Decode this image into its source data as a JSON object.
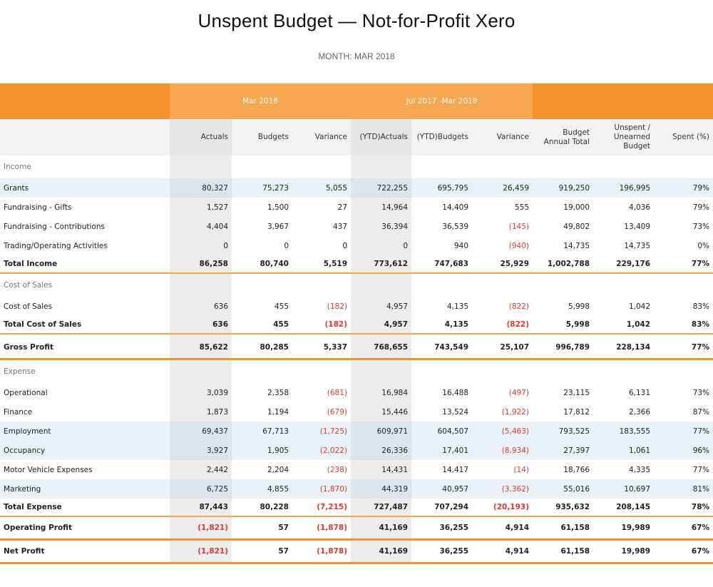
{
  "title": "Unspent Budget — Not-for-Profit Xero",
  "subtitle": "MONTH: MAR 2018",
  "colors": {
    "orange": "#f5922b",
    "light_orange": "#f7a74f",
    "negative": "#e03a2f",
    "row_highlight": "#e9f1f8"
  },
  "groups": {
    "month": "Mar 2018",
    "ytd": "Jul 2017 -Mar 2018"
  },
  "columns": [
    "Actuals",
    "Budgets",
    "Variance",
    "(YTD)Actuals",
    "(YTD)Budgets",
    "Variance",
    "Budget Annual Total",
    "Unspent / Unearned Budget",
    "Spent (%)"
  ],
  "sections": [
    {
      "title": "Income",
      "rows": [
        {
          "label": "Grants",
          "highlight": true,
          "values": [
            "80,327",
            "75,273",
            "5,055",
            "722,255",
            "695,795",
            "26,459",
            "919,250",
            "196,995",
            "79%"
          ]
        },
        {
          "label": "Fundraising - Gifts",
          "highlight": false,
          "values": [
            "1,527",
            "1,500",
            "27",
            "14,964",
            "14,409",
            "555",
            "19,000",
            "4,036",
            "79%"
          ]
        },
        {
          "label": "Fundraising - Contributions",
          "highlight": false,
          "values": [
            "4,404",
            "3,967",
            "437",
            "36,394",
            "36,539",
            "(145)",
            "49,802",
            "13,409",
            "73%"
          ]
        },
        {
          "label": "Trading/Operating Activities",
          "highlight": false,
          "values": [
            "0",
            "0",
            "0",
            "0",
            "940",
            "(940)",
            "14,735",
            "14,735",
            "0%"
          ]
        }
      ],
      "total": {
        "label": "Total Income",
        "values": [
          "86,258",
          "80,740",
          "5,519",
          "773,612",
          "747,683",
          "25,929",
          "1,002,788",
          "229,176",
          "77%"
        ]
      }
    },
    {
      "title": "Cost of Sales",
      "rows": [
        {
          "label": "Cost of Sales",
          "highlight": false,
          "values": [
            "636",
            "455",
            "(182)",
            "4,957",
            "4,135",
            "(822)",
            "5,998",
            "1,042",
            "83%"
          ]
        }
      ],
      "total": {
        "label": "Total Cost of Sales",
        "values": [
          "636",
          "455",
          "(182)",
          "4,957",
          "4,135",
          "(822)",
          "5,998",
          "1,042",
          "83%"
        ]
      }
    }
  ],
  "gross_profit": {
    "label": "Gross Profit",
    "values": [
      "85,622",
      "80,285",
      "5,337",
      "768,655",
      "743,549",
      "25,107",
      "996,789",
      "228,134",
      "77%"
    ]
  },
  "expense": {
    "title": "Expense",
    "rows": [
      {
        "label": "Operational",
        "highlight": false,
        "values": [
          "3,039",
          "2,358",
          "(681)",
          "16,984",
          "16,488",
          "(497)",
          "23,115",
          "6,131",
          "73%"
        ]
      },
      {
        "label": "Finance",
        "highlight": false,
        "values": [
          "1,873",
          "1,194",
          "(679)",
          "15,446",
          "13,524",
          "(1,922)",
          "17,812",
          "2,366",
          "87%"
        ]
      },
      {
        "label": "Employment",
        "highlight": true,
        "values": [
          "69,437",
          "67,713",
          "(1,725)",
          "609,971",
          "604,507",
          "(5,463)",
          "793,525",
          "183,555",
          "77%"
        ]
      },
      {
        "label": "Occupancy",
        "highlight": true,
        "values": [
          "3,927",
          "1,905",
          "(2,022)",
          "26,336",
          "17,401",
          "(8,934)",
          "27,397",
          "1,061",
          "96%"
        ]
      },
      {
        "label": "Motor Vehicle Expenses",
        "highlight": false,
        "values": [
          "2,442",
          "2,204",
          "(238)",
          "14,431",
          "14,417",
          "(14)",
          "18,766",
          "4,335",
          "77%"
        ]
      },
      {
        "label": "Marketing",
        "highlight": true,
        "values": [
          "6,725",
          "4,855",
          "(1,870)",
          "44,319",
          "40,957",
          "(3,362)",
          "55,016",
          "10,697",
          "81%"
        ]
      }
    ],
    "total": {
      "label": "Total Expense",
      "values": [
        "87,443",
        "80,228",
        "(7,215)",
        "727,487",
        "707,294",
        "(20,193)",
        "935,632",
        "208,145",
        "78%"
      ]
    }
  },
  "operating_profit": {
    "label": "Operating Profit",
    "values": [
      "(1,821)",
      "57",
      "(1,878)",
      "41,169",
      "36,255",
      "4,914",
      "61,158",
      "19,989",
      "67%"
    ]
  },
  "net_profit": {
    "label": "Net Profit",
    "values": [
      "(1,821)",
      "57",
      "(1,878)",
      "41,169",
      "36,255",
      "4,914",
      "61,158",
      "19,989",
      "67%"
    ]
  }
}
